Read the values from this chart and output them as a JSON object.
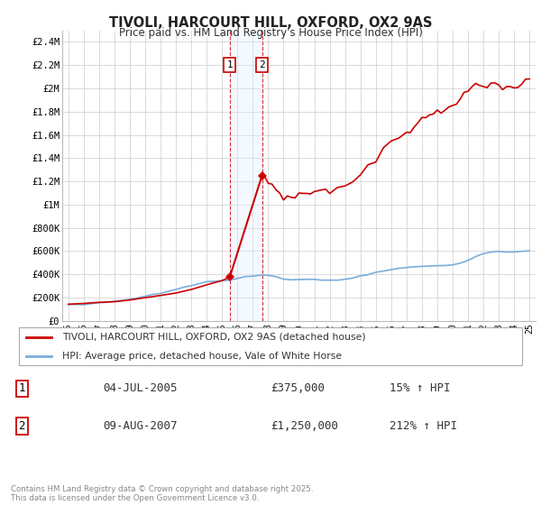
{
  "title": "TIVOLI, HARCOURT HILL, OXFORD, OX2 9AS",
  "subtitle": "Price paid vs. HM Land Registry's House Price Index (HPI)",
  "hpi_label": "HPI: Average price, detached house, Vale of White Horse",
  "property_label": "TIVOLI, HARCOURT HILL, OXFORD, OX2 9AS (detached house)",
  "sale1_date": "04-JUL-2005",
  "sale1_price": 375000,
  "sale1_hpi": "15% ↑ HPI",
  "sale2_date": "09-AUG-2007",
  "sale2_price": 1250000,
  "sale2_hpi": "212% ↑ HPI",
  "footnote": "Contains HM Land Registry data © Crown copyright and database right 2025.\nThis data is licensed under the Open Government Licence v3.0.",
  "ylim": [
    0,
    2500000
  ],
  "yticks": [
    0,
    200000,
    400000,
    600000,
    800000,
    1000000,
    1200000,
    1400000,
    1600000,
    1800000,
    2000000,
    2200000,
    2400000
  ],
  "ytick_labels": [
    "£0",
    "£200K",
    "£400K",
    "£600K",
    "£800K",
    "£1M",
    "£1.2M",
    "£1.4M",
    "£1.6M",
    "£1.8M",
    "£2M",
    "£2.2M",
    "£2.4M"
  ],
  "hpi_color": "#7aaddc",
  "property_color": "#cc0000",
  "sale1_x": 2005.5,
  "sale2_x": 2007.6,
  "shade_color": "#ddeeff",
  "background_color": "#ffffff",
  "grid_color": "#cccccc",
  "sale_box_color": "#cc0000"
}
